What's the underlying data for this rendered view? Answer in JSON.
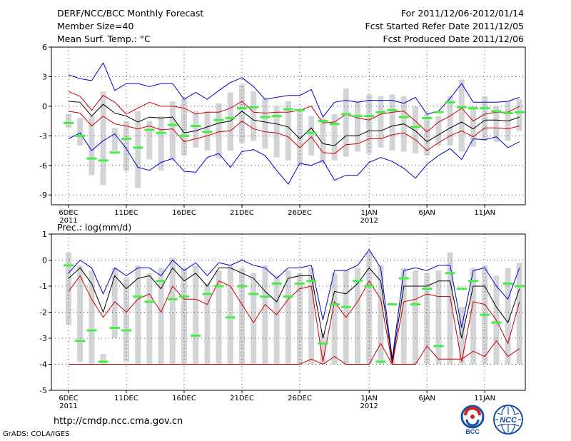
{
  "header": {
    "left_lines": [
      "DERF/NCC/BCC Monthly Forecast",
      "Member Size=40",
      "Mean Surf. Temp.: °C"
    ],
    "right_lines": [
      "For 2011/12/06-2012/01/14",
      "Fcst Started Refer Date 2011/12/05",
      "Fcst Produced Date 2011/12/06"
    ]
  },
  "footer": {
    "url": "http://cmdp.ncc.cma.gov.cn",
    "credit": "GrADS: COLA/IGES"
  },
  "logos": {
    "bcc": "BCC",
    "ncc": "NCC"
  },
  "colors": {
    "max": "#0000cc",
    "pct": "#cc0000",
    "mean": "#000000",
    "obs": "#44ee44",
    "spread": "#d2d4d8"
  },
  "chart_data": [
    {
      "type": "line",
      "title": "Mean Surf. Temp.: °C",
      "xlabel": "",
      "ylabel": "",
      "xlim": [
        0,
        39
      ],
      "ylim": [
        -10,
        6
      ],
      "yticks": [
        6,
        3,
        0,
        -3,
        -6,
        -9
      ],
      "xticks": [
        {
          "day": 0,
          "label": "6DEC",
          "sub": "2011"
        },
        {
          "day": 5,
          "label": "11DEC"
        },
        {
          "day": 10,
          "label": "16DEC"
        },
        {
          "day": 15,
          "label": "21DEC"
        },
        {
          "day": 20,
          "label": "26DEC"
        },
        {
          "day": 26,
          "label": "1JAN",
          "sub": "2012"
        },
        {
          "day": 31,
          "label": "6JAN"
        },
        {
          "day": 36,
          "label": "11JAN"
        }
      ],
      "series": [
        {
          "name": "ensemble max",
          "color": "#0000cc",
          "values": [
            3.2,
            2.8,
            2.6,
            4.4,
            1.6,
            2.3,
            2.3,
            2.0,
            2.3,
            2.3,
            0.7,
            1.4,
            0.7,
            1.6,
            2.4,
            2.9,
            2.0,
            0.7,
            0.9,
            1.1,
            1.1,
            1.7,
            -1.1,
            0.4,
            0.6,
            0.4,
            0.6,
            0.6,
            0.6,
            0.3,
            0.9,
            -0.8,
            -0.5,
            0.8,
            2.3,
            0.4,
            0.4,
            0.4,
            0.5,
            0.9
          ]
        },
        {
          "name": "upper percentile",
          "color": "#cc0000",
          "values": [
            1.5,
            1.0,
            -0.4,
            1.1,
            0.4,
            -0.8,
            -0.2,
            0.4,
            0.0,
            0.0,
            -0.2,
            -0.8,
            -0.6,
            -0.6,
            -0.2,
            0.5,
            -0.6,
            -0.7,
            -0.6,
            -0.6,
            -0.4,
            0.0,
            -1.7,
            -1.6,
            -0.8,
            -1.2,
            -1.4,
            -0.8,
            -0.6,
            -0.5,
            -1.5,
            -2.6,
            -1.6,
            -1.0,
            -0.2,
            -1.5,
            -0.8,
            -0.6,
            -0.6,
            0.0
          ]
        },
        {
          "name": "ensemble mean",
          "color": "#000000",
          "values": [
            0.5,
            0.4,
            -1.0,
            0.2,
            -0.7,
            -1.0,
            -1.6,
            -1.1,
            -1.2,
            -1.1,
            -2.7,
            -2.5,
            -2.1,
            -1.7,
            -1.5,
            -0.5,
            -1.4,
            -1.6,
            -1.8,
            -2.1,
            -3.3,
            -2.2,
            -3.8,
            -4.0,
            -3.0,
            -3.0,
            -2.5,
            -2.5,
            -2.0,
            -1.8,
            -2.5,
            -3.6,
            -2.9,
            -2.2,
            -1.6,
            -2.3,
            -1.4,
            -1.4,
            -1.5,
            -1.1
          ]
        },
        {
          "name": "lower percentile",
          "color": "#cc0000",
          "values": [
            -0.5,
            -0.7,
            -2.0,
            -1.0,
            -1.8,
            -2.0,
            -2.3,
            -2.0,
            -2.4,
            -2.3,
            -3.6,
            -3.3,
            -3.0,
            -2.6,
            -2.5,
            -1.5,
            -2.3,
            -2.6,
            -2.7,
            -3.1,
            -4.2,
            -3.1,
            -4.7,
            -4.8,
            -3.9,
            -3.8,
            -3.3,
            -3.3,
            -2.9,
            -2.7,
            -3.4,
            -4.5,
            -3.7,
            -3.0,
            -2.5,
            -3.1,
            -2.2,
            -2.2,
            -2.3,
            -2.0
          ]
        },
        {
          "name": "ensemble min",
          "color": "#0000cc",
          "values": [
            -3.3,
            -2.7,
            -4.5,
            -3.5,
            -2.8,
            -4.3,
            -6.2,
            -6.5,
            -5.7,
            -5.3,
            -6.6,
            -6.7,
            -5.2,
            -4.8,
            -6.2,
            -4.6,
            -4.4,
            -5.0,
            -6.5,
            -7.9,
            -5.8,
            -6.0,
            -5.5,
            -7.5,
            -7.0,
            -7.0,
            -5.7,
            -5.2,
            -5.6,
            -6.3,
            -7.3,
            -5.9,
            -5.0,
            -4.3,
            -5.4,
            -3.3,
            -3.4,
            -3.1,
            -4.2,
            -3.6
          ]
        }
      ],
      "obs": [
        -1.7,
        -3.0,
        -5.3,
        -5.5,
        -4.7,
        -3.3,
        -4.2,
        -2.4,
        -2.7,
        -1.9,
        -3.0,
        -2.0,
        -2.6,
        -1.4,
        -1.2,
        -0.2,
        -0.1,
        -1.1,
        -1.0,
        -0.3,
        -0.4,
        -2.7,
        -1.5,
        -1.8,
        -0.8,
        -1.0,
        -1.0,
        -0.6,
        -0.4,
        -1.1,
        -2.1,
        -1.2,
        -0.6,
        0.4,
        -0.1,
        -0.2,
        -0.2,
        -0.5,
        -0.7,
        -0.6
      ],
      "spread_low": [
        -2.2,
        -4.0,
        -7.0,
        -8.0,
        -4.5,
        -6.6,
        -8.3,
        -5.4,
        -6.5,
        -5.5,
        -5.0,
        -4.2,
        -4.5,
        -5.3,
        -4.5,
        -3.7,
        -3.5,
        -4.3,
        -5.2,
        -5.5,
        -6.0,
        -5.0,
        -5.8,
        -5.5,
        -5.1,
        -4.6,
        -4.8,
        -4.2,
        -4.5,
        -4.6,
        -4.8,
        -5.0,
        -4.0,
        -4.0,
        -4.6,
        -4.1,
        -3.5,
        -3.6,
        -3.5,
        -2.5
      ],
      "spread_high": [
        -0.8,
        -1.2,
        -1.0,
        1.5,
        -2.2,
        -1.5,
        -0.5,
        -1.5,
        -1.0,
        0.5,
        0.8,
        -0.5,
        -0.5,
        0.3,
        1.4,
        2.2,
        1.5,
        0.8,
        0.0,
        0.5,
        -0.5,
        -1.0,
        -1.2,
        -0.8,
        1.8,
        0.5,
        1.2,
        1.0,
        1.2,
        1.0,
        0.0,
        -0.8,
        -1.0,
        1.0,
        2.7,
        0.0,
        1.0,
        0.0,
        0.5,
        0.7
      ]
    },
    {
      "type": "line",
      "title": "Prec.: log(mm/d)",
      "xlabel": "",
      "ylabel": "",
      "xlim": [
        0,
        39
      ],
      "ylim": [
        -5,
        1
      ],
      "yticks": [
        1,
        0,
        -1,
        -2,
        -3,
        -4,
        -5
      ],
      "xticks": [
        {
          "day": 0,
          "label": "6DEC",
          "sub": "2011"
        },
        {
          "day": 5,
          "label": "11DEC"
        },
        {
          "day": 10,
          "label": "16DEC"
        },
        {
          "day": 15,
          "label": "21DEC"
        },
        {
          "day": 20,
          "label": "26DEC"
        },
        {
          "day": 26,
          "label": "1JAN",
          "sub": "2012"
        },
        {
          "day": 31,
          "label": "6JAN"
        },
        {
          "day": 36,
          "label": "11JAN"
        }
      ],
      "series": [
        {
          "name": "ensemble max",
          "color": "#0000cc",
          "values": [
            -0.5,
            0.0,
            -0.3,
            -1.3,
            -0.3,
            -0.6,
            -0.3,
            -0.3,
            -0.6,
            0.0,
            -0.4,
            -0.1,
            -0.6,
            -0.1,
            -0.2,
            0.0,
            -0.2,
            -0.3,
            -0.7,
            -0.3,
            -0.3,
            -0.2,
            -2.3,
            -0.4,
            -0.4,
            -0.2,
            0.4,
            -0.3,
            -3.8,
            -0.4,
            -0.3,
            -0.4,
            -0.2,
            -0.2,
            -2.6,
            -0.4,
            -0.3,
            -1.0,
            -1.5,
            -0.3
          ]
        },
        {
          "name": "ensemble mean",
          "color": "#000000",
          "values": [
            -0.7,
            -0.3,
            -0.9,
            -2.0,
            -0.6,
            -1.1,
            -0.7,
            -0.6,
            -1.1,
            -0.3,
            -0.8,
            -0.5,
            -1.0,
            -0.3,
            -0.3,
            -0.5,
            -0.7,
            -1.2,
            -1.6,
            -0.7,
            -0.6,
            -0.6,
            -3.0,
            -1.2,
            -1.3,
            -0.9,
            -0.3,
            -0.8,
            -3.9,
            -1.0,
            -1.0,
            -1.0,
            -0.8,
            -0.8,
            -3.0,
            -1.0,
            -1.0,
            -1.8,
            -2.4,
            -1.1
          ]
        },
        {
          "name": "upper percentile",
          "color": "#cc0000",
          "values": [
            -1.2,
            -0.6,
            -1.5,
            -2.2,
            -1.6,
            -2.0,
            -1.5,
            -1.3,
            -2.0,
            -1.0,
            -1.5,
            -1.5,
            -1.7,
            -0.8,
            -1.0,
            -1.7,
            -2.4,
            -1.7,
            -2.1,
            -1.5,
            -1.1,
            -1.0,
            -3.9,
            -1.6,
            -2.2,
            -1.6,
            -0.8,
            -1.5,
            -4.0,
            -1.6,
            -1.5,
            -1.3,
            -1.4,
            -1.4,
            -3.9,
            -1.6,
            -1.7,
            -2.3,
            -3.2,
            -1.6
          ]
        },
        {
          "name": "lower percentile",
          "color": "#cc0000",
          "values": [
            -4,
            -4,
            -4,
            -4,
            -4,
            -4,
            -4,
            -4,
            -4,
            -4,
            -4,
            -4,
            -4,
            -4,
            -4,
            -4,
            -4,
            -4,
            -4,
            -4,
            -4,
            -3.8,
            -4.0,
            -3.7,
            -4,
            -4,
            -4,
            -3.2,
            -4.0,
            -4,
            -4,
            -3.3,
            -3.8,
            -3.8,
            -3.8,
            -3.5,
            -3.7,
            -3.1,
            -3.7,
            -3.4
          ]
        }
      ],
      "obs": [
        -0.2,
        -3.1,
        -2.7,
        -3.9,
        -2.6,
        -2.7,
        -1.4,
        -1.6,
        -0.8,
        -1.5,
        -1.4,
        -2.9,
        -1.3,
        -1.0,
        -2.2,
        -1.0,
        -1.3,
        -1.4,
        -0.9,
        -1.4,
        -0.9,
        -0.8,
        -3.2,
        -1.7,
        -1.8,
        -0.8,
        -1.0,
        -3.9,
        -1.7,
        -0.7,
        -1.7,
        -1.1,
        -3.3,
        -0.5,
        -1.1,
        -0.8,
        -2.1,
        -2.4,
        -0.9,
        -1.0
      ],
      "spread_low": [
        -2.5,
        -3.9,
        -4,
        -4,
        -3.0,
        -3.9,
        -4,
        -4,
        -4,
        -4,
        -4,
        -4,
        -4,
        -4,
        -4,
        -4,
        -4,
        -4,
        -4,
        -4,
        -4,
        -4,
        -4,
        -4,
        -4,
        -4,
        -4,
        -4,
        -4,
        -4,
        -4,
        -4,
        -4,
        -4,
        -4,
        -4,
        -4,
        -4,
        -4,
        -4
      ],
      "spread_high": [
        0.3,
        -0.2,
        -0.4,
        -3.6,
        -0.3,
        -0.7,
        -0.2,
        -0.5,
        -0.3,
        0.1,
        -0.3,
        -0.2,
        -0.9,
        -0.4,
        -0.2,
        -0.3,
        -0.5,
        -0.2,
        -0.6,
        -0.4,
        -0.5,
        -0.3,
        -2.8,
        -0.5,
        -0.4,
        -0.3,
        0.3,
        -0.2,
        -3.7,
        -0.3,
        -0.4,
        -0.5,
        -0.4,
        0.3,
        -1.8,
        -0.3,
        -0.2,
        -0.6,
        -0.3,
        -0.1
      ]
    }
  ]
}
